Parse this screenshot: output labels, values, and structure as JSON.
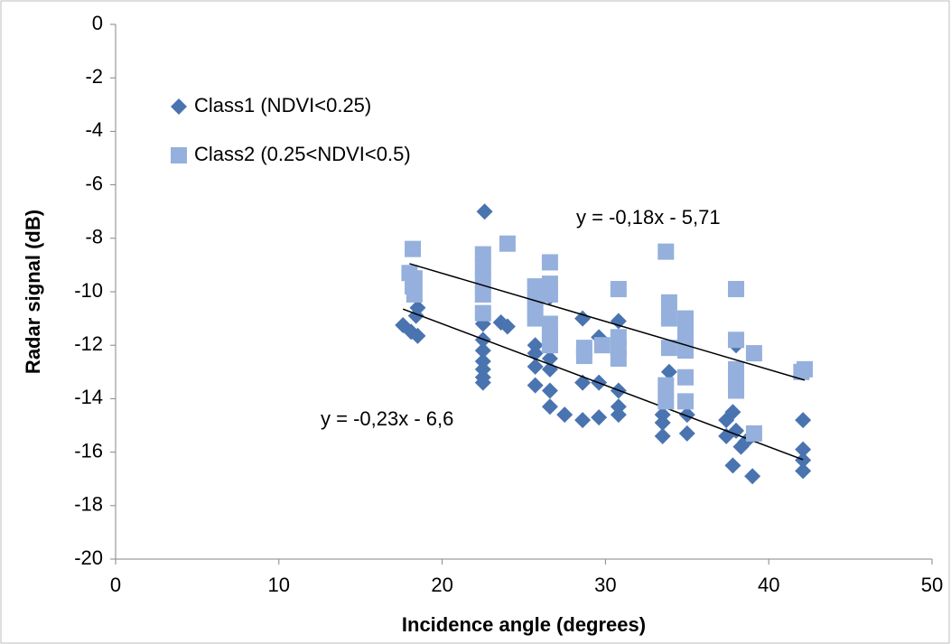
{
  "chart_data": {
    "type": "scatter",
    "xlabel": "Incidence angle (degrees)",
    "ylabel": "Radar signal (dB)",
    "xlim": [
      0,
      50
    ],
    "xticks": [
      0,
      10,
      20,
      30,
      40,
      50
    ],
    "ylim": [
      -20,
      0
    ],
    "yticks": [
      0,
      -2,
      -4,
      -6,
      -8,
      -10,
      -12,
      -14,
      -16,
      -18,
      -20
    ],
    "grid": false,
    "legend": "upper left",
    "series": [
      {
        "name": "Class1 (NDVI<0.25)",
        "color": "#4a74b0",
        "marker": "diamond",
        "x": [
          17.6,
          18.1,
          18.5,
          18.5,
          18.4,
          22.6,
          22.5,
          22.5,
          22.5,
          22.5,
          22.5,
          22.5,
          22.5,
          23.6,
          24.0,
          25.7,
          25.7,
          25.7,
          25.7,
          26.6,
          26.6,
          26.6,
          26.6,
          26.6,
          27.5,
          28.6,
          28.6,
          28.6,
          29.6,
          29.6,
          29.6,
          30.8,
          30.8,
          30.8,
          30.8,
          33.5,
          33.5,
          33.5,
          33.9,
          35.0,
          35.0,
          37.4,
          37.4,
          37.8,
          37.8,
          38.0,
          38.0,
          38.3,
          38.6,
          39.0,
          42.1,
          42.1,
          42.1,
          42.1
        ],
        "values": [
          -11.25,
          -11.5,
          -11.65,
          -10.6,
          -10.9,
          -7.0,
          -11.2,
          -11.8,
          -12.2,
          -12.6,
          -12.9,
          -13.2,
          -13.4,
          -11.15,
          -11.3,
          -12.0,
          -12.3,
          -12.8,
          -13.5,
          -10.2,
          -12.5,
          -12.9,
          -13.7,
          -14.3,
          -14.6,
          -11.0,
          -13.4,
          -14.8,
          -11.7,
          -13.4,
          -14.7,
          -11.1,
          -13.7,
          -14.3,
          -14.6,
          -14.6,
          -14.9,
          -15.4,
          -13.0,
          -14.6,
          -15.3,
          -14.8,
          -15.4,
          -14.5,
          -16.5,
          -12.0,
          -15.2,
          -15.8,
          -15.6,
          -16.9,
          -14.8,
          -15.9,
          -16.3,
          -16.7
        ],
        "trend": {
          "label": "y = -0,23x - 6,6",
          "slope": -0.23,
          "intercept": -6.6
        }
      },
      {
        "name": "Class2 (0.25<NDVI<0.5)",
        "color": "#95b0dc",
        "marker": "square",
        "x": [
          18.0,
          18.2,
          18.2,
          18.3,
          18.3,
          22.5,
          22.5,
          22.5,
          22.5,
          22.5,
          24.0,
          25.7,
          25.7,
          25.7,
          26.6,
          26.6,
          26.6,
          26.6,
          26.6,
          26.6,
          28.7,
          28.7,
          29.8,
          30.8,
          30.8,
          30.8,
          30.8,
          33.7,
          33.7,
          33.7,
          33.9,
          33.9,
          33.9,
          34.9,
          34.9,
          34.9,
          34.9,
          34.9,
          38.0,
          38.0,
          38.0,
          38.0,
          38.0,
          39.1,
          39.1,
          42.0,
          42.2
        ],
        "values": [
          -9.3,
          -8.4,
          -9.8,
          -9.5,
          -10.1,
          -8.6,
          -9.1,
          -9.6,
          -10.1,
          -10.8,
          -8.2,
          -9.8,
          -10.4,
          -11.0,
          -8.9,
          -9.7,
          -10.1,
          -11.2,
          -11.7,
          -12.0,
          -12.1,
          -12.4,
          -12.0,
          -9.9,
          -11.7,
          -12.1,
          -12.5,
          -8.5,
          -13.5,
          -14.1,
          -10.4,
          -11.0,
          -12.1,
          -11.0,
          -11.6,
          -12.2,
          -13.2,
          -14.1,
          -9.9,
          -11.8,
          -12.9,
          -13.3,
          -13.7,
          -12.3,
          -15.3,
          -13.0,
          -12.9
        ],
        "trend": {
          "label": "y = -0,18x - 5,71",
          "slope": -0.18,
          "intercept": -5.71
        }
      }
    ]
  }
}
